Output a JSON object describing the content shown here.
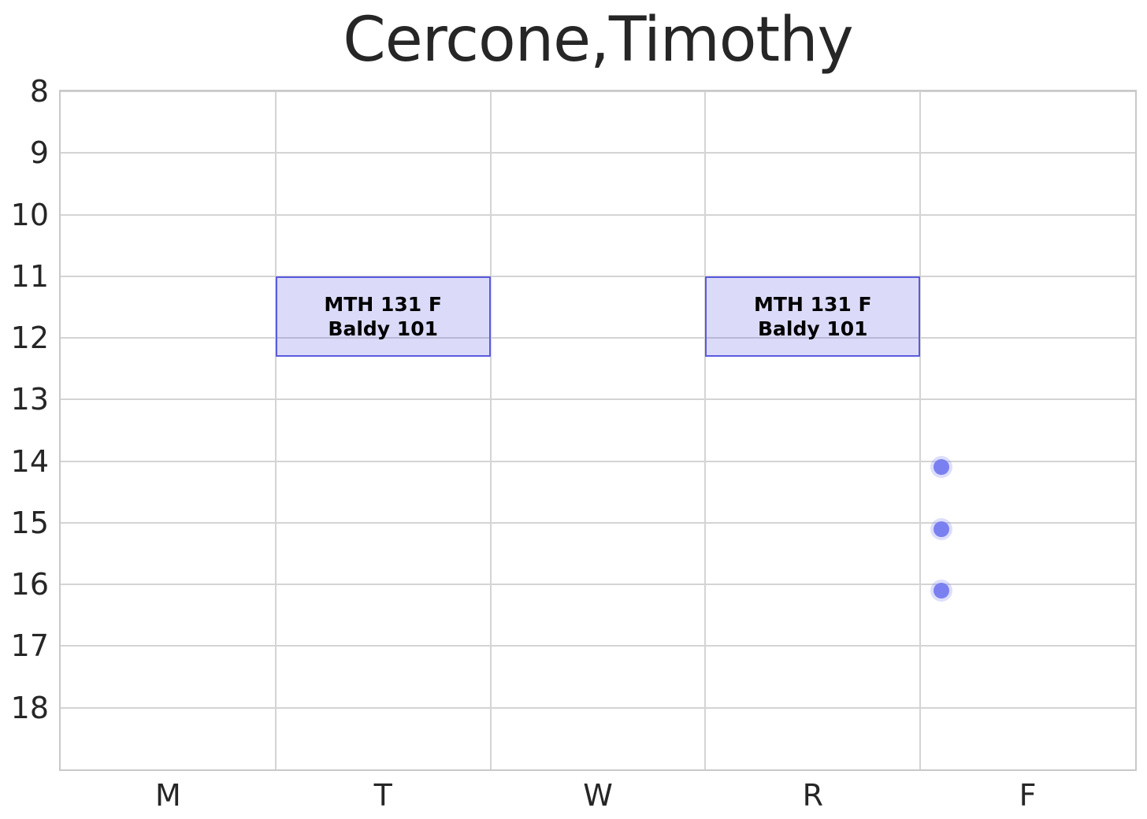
{
  "title": "Cercone,Timothy",
  "chart_data": {
    "type": "scatter",
    "title": "Cercone,Timothy",
    "x_categories": [
      "M",
      "T",
      "W",
      "R",
      "F"
    ],
    "y_ticks": [
      8,
      9,
      10,
      11,
      12,
      13,
      14,
      15,
      16,
      17,
      18
    ],
    "y_range": [
      8,
      19
    ],
    "y_axis": "hour of day (24h), increasing downward",
    "grid": "on",
    "legend": "none",
    "events": [
      {
        "day": "T",
        "start_hour": 11.0,
        "end_hour": 12.3,
        "label": [
          "MTH 131 F",
          "Baldy 101"
        ]
      },
      {
        "day": "R",
        "start_hour": 11.0,
        "end_hour": 12.3,
        "label": [
          "MTH 131 F",
          "Baldy 101"
        ]
      }
    ],
    "points": [
      {
        "day_position": 4.1,
        "hour": 14.1
      },
      {
        "day_position": 4.1,
        "hour": 15.1
      },
      {
        "day_position": 4.1,
        "hour": 16.1
      }
    ],
    "colors": {
      "event_fill": "#5c5ce238",
      "event_border": "#5a5ae0",
      "event_text": "#000000",
      "point_fill": "#7b80f0",
      "point_halo": "#7b80f042",
      "gridline": "#d4d4d4",
      "frame": "#c9c9c9",
      "title_color": "#262626",
      "tick_color": "#262626"
    }
  }
}
